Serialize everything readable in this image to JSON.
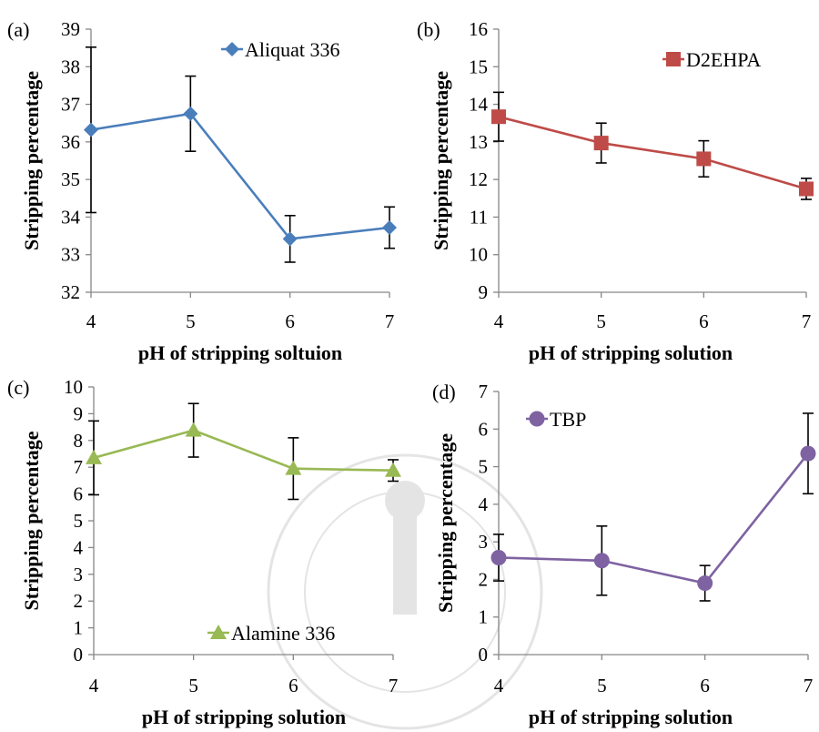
{
  "chart_data": [
    {
      "panel_label": "(a)",
      "type": "line",
      "x": [
        4,
        5,
        6,
        7
      ],
      "xlim": [
        4,
        7
      ],
      "ylim": [
        32,
        39
      ],
      "yticks": [
        32,
        33,
        34,
        35,
        36,
        37,
        38,
        39
      ],
      "xlabel": "pH of stripping soltuion",
      "ylabel": "Stripping percentage",
      "legend_position": "top-right",
      "series": [
        {
          "name": "Aliquat 336",
          "marker": "diamond",
          "color": "#4A7EBB",
          "values": [
            36.32,
            36.75,
            33.42,
            33.72
          ],
          "errors": [
            2.2,
            1.0,
            0.62,
            0.55
          ]
        }
      ]
    },
    {
      "panel_label": "(b)",
      "type": "line",
      "x": [
        4,
        5,
        6,
        7
      ],
      "xlim": [
        4,
        7
      ],
      "ylim": [
        9,
        16
      ],
      "yticks": [
        9,
        10,
        11,
        12,
        13,
        14,
        15,
        16
      ],
      "xlabel": "pH of stripping solution",
      "ylabel": "Stripping percentage",
      "legend_position": "top-right",
      "series": [
        {
          "name": "D2EHPA",
          "marker": "square",
          "color": "#BE4B48",
          "values": [
            13.67,
            12.97,
            12.55,
            11.75
          ],
          "errors": [
            0.65,
            0.53,
            0.48,
            0.28
          ]
        }
      ]
    },
    {
      "panel_label": "(c)",
      "type": "line",
      "x": [
        4,
        5,
        6,
        7
      ],
      "xlim": [
        4,
        7
      ],
      "ylim": [
        0,
        10
      ],
      "yticks": [
        0,
        1,
        2,
        3,
        4,
        5,
        6,
        7,
        8,
        9,
        10
      ],
      "xlabel": "pH of stripping solution",
      "ylabel": "Stripping percentage",
      "legend_position": "bottom-center",
      "series": [
        {
          "name": "Alamine 336",
          "marker": "triangle",
          "color": "#98B954",
          "values": [
            7.35,
            8.38,
            6.95,
            6.88
          ],
          "errors": [
            1.38,
            1.0,
            1.15,
            0.4
          ]
        }
      ]
    },
    {
      "panel_label": "(d)",
      "type": "line",
      "x": [
        4,
        5,
        6,
        7
      ],
      "xlim": [
        4,
        7
      ],
      "ylim": [
        0,
        7
      ],
      "yticks": [
        0,
        1,
        2,
        3,
        4,
        5,
        6,
        7
      ],
      "xlabel": "pH of stripping solution",
      "ylabel": "Stripping percentage",
      "legend_position": "top-left",
      "series": [
        {
          "name": "TBP",
          "marker": "circle",
          "color": "#7E62A1",
          "values": [
            2.58,
            2.5,
            1.9,
            5.35
          ],
          "errors": [
            0.62,
            0.92,
            0.47,
            1.07
          ]
        }
      ]
    }
  ]
}
